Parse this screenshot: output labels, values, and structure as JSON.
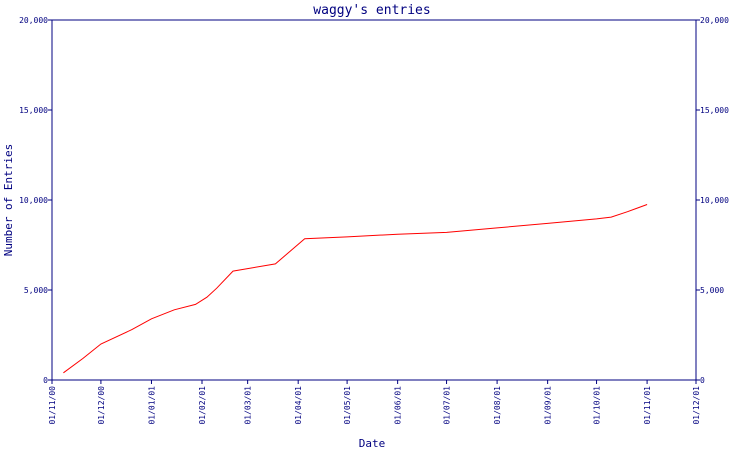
{
  "chart_data": {
    "type": "line",
    "title": "waggy's entries",
    "xlabel": "Date",
    "ylabel": "Number of Entries",
    "ylim": [
      0,
      20000
    ],
    "y_ticks": [
      "0",
      "5,000",
      "10,000",
      "15,000",
      "20,000"
    ],
    "y_tick_values": [
      0,
      5000,
      10000,
      15000,
      20000
    ],
    "x_ticks": [
      "01/11/00",
      "01/12/00",
      "01/01/01",
      "01/02/01",
      "01/03/01",
      "01/04/01",
      "01/05/01",
      "01/06/01",
      "01/07/01",
      "01/08/01",
      "01/09/01",
      "01/10/01",
      "01/11/01",
      "01/12/01"
    ],
    "xlim": [
      "2000-11-01",
      "2001-12-01"
    ],
    "grid": false,
    "series": [
      {
        "color": "#ff0000",
        "x": [
          "2000-11-08",
          "2000-11-20",
          "2000-12-01",
          "2000-12-20",
          "2001-01-01",
          "2001-01-15",
          "2001-01-28",
          "2001-02-04",
          "2001-02-10",
          "2001-02-20",
          "2001-03-18",
          "2001-04-05",
          "2001-05-01",
          "2001-06-01",
          "2001-07-01",
          "2001-08-01",
          "2001-09-01",
          "2001-10-01",
          "2001-10-10",
          "2001-10-20",
          "2001-11-01"
        ],
        "y": [
          400,
          1200,
          2000,
          2800,
          3400,
          3900,
          4200,
          4600,
          5100,
          6050,
          6450,
          7850,
          7950,
          8100,
          8200,
          8450,
          8700,
          8950,
          9050,
          9350,
          9750
        ]
      }
    ]
  }
}
